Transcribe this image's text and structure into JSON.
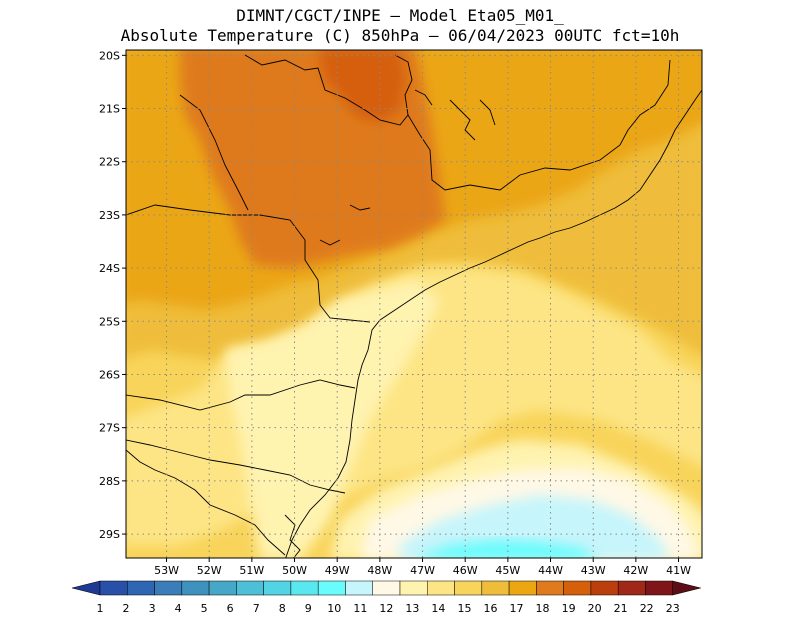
{
  "title": {
    "line1": "DIMNT/CGCT/INPE –  Model Eta05_M01_",
    "line2": "Absolute Temperature (C) 850hPa –  06/04/2023 00UTC fct=10h"
  },
  "map": {
    "lon_range": [
      -53.95,
      -40.45
    ],
    "lat_range": [
      -29.45,
      -19.9
    ],
    "lat_ticks": [
      {
        "value": -20,
        "label": "20S"
      },
      {
        "value": -21,
        "label": "21S"
      },
      {
        "value": -22,
        "label": "22S"
      },
      {
        "value": -23,
        "label": "23S"
      },
      {
        "value": -24,
        "label": "24S"
      },
      {
        "value": -25,
        "label": "25S"
      },
      {
        "value": -26,
        "label": "26S"
      },
      {
        "value": -27,
        "label": "27S"
      },
      {
        "value": -28,
        "label": "28S"
      },
      {
        "value": -29,
        "label": "29S"
      }
    ],
    "lon_ticks": [
      {
        "value": -53,
        "label": "53W"
      },
      {
        "value": -52,
        "label": "52W"
      },
      {
        "value": -51,
        "label": "51W"
      },
      {
        "value": -50,
        "label": "50W"
      },
      {
        "value": -49,
        "label": "49W"
      },
      {
        "value": -48,
        "label": "48W"
      },
      {
        "value": -47,
        "label": "47W"
      },
      {
        "value": -46,
        "label": "46W"
      },
      {
        "value": -45,
        "label": "45W"
      },
      {
        "value": -44,
        "label": "44W"
      },
      {
        "value": -43,
        "label": "43W"
      },
      {
        "value": -42,
        "label": "42W"
      },
      {
        "value": -41,
        "label": "41W"
      }
    ],
    "grid": "dotted"
  },
  "colorbar": {
    "labels": [
      "1",
      "2",
      "3",
      "4",
      "5",
      "6",
      "7",
      "8",
      "9",
      "10",
      "11",
      "12",
      "13",
      "14",
      "15",
      "16",
      "17",
      "18",
      "19",
      "20",
      "21",
      "22",
      "23"
    ],
    "colors": [
      "#1f3a93",
      "#2850a8",
      "#2f66b4",
      "#3a7db8",
      "#3f92be",
      "#45a8c8",
      "#4dbfd6",
      "#52d4e4",
      "#5ae8f0",
      "#68fcfc",
      "#c6f5fb",
      "#fff8e6",
      "#fff3b0",
      "#fde585",
      "#f8d45a",
      "#efbd3b",
      "#eba612",
      "#df7a1e",
      "#d55f0b",
      "#bb3f0c",
      "#a02818",
      "#7f1518",
      "#5c0d16"
    ]
  },
  "legend_values_C": {
    "min": 1,
    "max": 23
  }
}
